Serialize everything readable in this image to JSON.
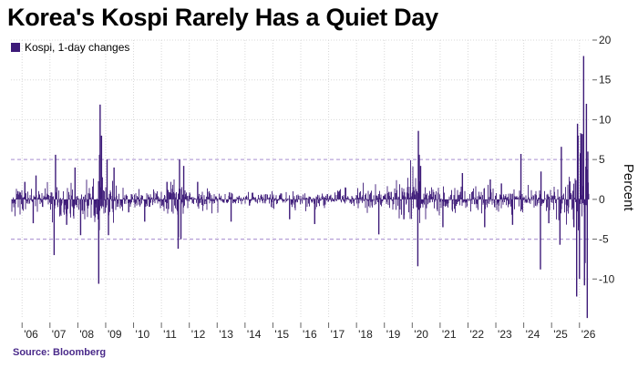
{
  "title": "Korea's Kospi Rarely Has a Quiet Day",
  "source": "Source: Bloomberg",
  "colors": {
    "series": "#3d1a78",
    "reference_line": "#b9a3d9",
    "grid": "#d8d8d8",
    "source_text": "#4a2a8a"
  },
  "chart_data": {
    "type": "bar",
    "ylabel": "Percent",
    "ylim": [
      -15,
      20
    ],
    "yticks": [
      -10,
      -5,
      0,
      5,
      10,
      15,
      20
    ],
    "ytick_labels": [
      "-10",
      "-5",
      "0",
      "5",
      "10",
      "15",
      "20"
    ],
    "reference_lines": [
      5,
      -5
    ],
    "x_range": [
      2005.6,
      2026.4
    ],
    "xticks": [
      2006,
      2007,
      2008,
      2009,
      2010,
      2011,
      2012,
      2013,
      2014,
      2015,
      2016,
      2017,
      2018,
      2019,
      2020,
      2021,
      2022,
      2023,
      2024,
      2025,
      2026
    ],
    "xtick_labels": [
      "'06",
      "'07",
      "'08",
      "'09",
      "'10",
      "'11",
      "'12",
      "'13",
      "'14",
      "'15",
      "'16",
      "'17",
      "'18",
      "'19",
      "'20",
      "'21",
      "'22",
      "'23",
      "'24",
      "'25",
      "'26"
    ],
    "grid": true,
    "legend_position": "top-left",
    "series": [
      {
        "name": "Kospi, 1-day changes",
        "volatility_regimes": [
          [
            2005.6,
            1.6
          ],
          [
            2006.4,
            1.3
          ],
          [
            2007.0,
            1.6
          ],
          [
            2007.6,
            2.2
          ],
          [
            2008.0,
            2.0
          ],
          [
            2008.7,
            4.2
          ],
          [
            2009.0,
            2.8
          ],
          [
            2009.5,
            1.6
          ],
          [
            2010.0,
            1.2
          ],
          [
            2011.0,
            1.2
          ],
          [
            2011.6,
            2.6
          ],
          [
            2012.0,
            1.3
          ],
          [
            2012.5,
            1.0
          ],
          [
            2013.0,
            0.9
          ],
          [
            2014.0,
            0.7
          ],
          [
            2015.0,
            0.9
          ],
          [
            2016.0,
            0.9
          ],
          [
            2017.0,
            0.7
          ],
          [
            2018.0,
            1.2
          ],
          [
            2019.0,
            1.1
          ],
          [
            2020.1,
            3.2
          ],
          [
            2020.5,
            1.8
          ],
          [
            2021.0,
            1.3
          ],
          [
            2022.0,
            1.5
          ],
          [
            2023.0,
            1.3
          ],
          [
            2024.0,
            1.3
          ],
          [
            2024.6,
            1.5
          ],
          [
            2025.0,
            1.5
          ],
          [
            2025.5,
            1.8
          ],
          [
            2025.8,
            3.5
          ],
          [
            2026.0,
            4.0
          ],
          [
            2026.4,
            4.0
          ]
        ],
        "extreme_moves": [
          [
            2006.1,
            2.2
          ],
          [
            2006.4,
            -3.0
          ],
          [
            2006.5,
            3.0
          ],
          [
            2007.15,
            -7.0
          ],
          [
            2007.2,
            5.6
          ],
          [
            2007.6,
            -3.2
          ],
          [
            2007.9,
            4.0
          ],
          [
            2008.1,
            -4.5
          ],
          [
            2008.75,
            -10.6
          ],
          [
            2008.78,
            5.6
          ],
          [
            2008.8,
            11.9
          ],
          [
            2008.85,
            8.0
          ],
          [
            2009.05,
            5.0
          ],
          [
            2009.1,
            -4.5
          ],
          [
            2009.3,
            4.0
          ],
          [
            2010.4,
            -2.8
          ],
          [
            2011.2,
            2.2
          ],
          [
            2011.6,
            -6.2
          ],
          [
            2011.65,
            5.0
          ],
          [
            2011.7,
            -5.0
          ],
          [
            2011.8,
            4.2
          ],
          [
            2012.3,
            2.2
          ],
          [
            2013.5,
            -2.8
          ],
          [
            2015.6,
            -2.5
          ],
          [
            2016.5,
            -3.1
          ],
          [
            2017.6,
            1.5
          ],
          [
            2018.8,
            -4.4
          ],
          [
            2019.7,
            -2.5
          ],
          [
            2020.2,
            -8.4
          ],
          [
            2020.22,
            8.6
          ],
          [
            2020.25,
            5.6
          ],
          [
            2020.3,
            4.2
          ],
          [
            2021.1,
            -3.5
          ],
          [
            2021.8,
            3.3
          ],
          [
            2022.6,
            -3.5
          ],
          [
            2022.8,
            2.5
          ],
          [
            2023.2,
            2.0
          ],
          [
            2023.6,
            -3.2
          ],
          [
            2023.9,
            5.7
          ],
          [
            2024.6,
            -8.8
          ],
          [
            2024.62,
            3.5
          ],
          [
            2024.9,
            -3.0
          ],
          [
            2025.3,
            -5.7
          ],
          [
            2025.35,
            6.6
          ],
          [
            2025.8,
            -3.5
          ],
          [
            2025.9,
            -12.2
          ],
          [
            2025.93,
            9.5
          ],
          [
            2025.95,
            8.0
          ],
          [
            2026.0,
            -10.0
          ],
          [
            2026.03,
            5.8
          ],
          [
            2026.05,
            8.3
          ],
          [
            2026.1,
            8.2
          ],
          [
            2026.15,
            18.0
          ],
          [
            2026.18,
            -10.8
          ],
          [
            2026.2,
            -8.0
          ],
          [
            2026.25,
            12.0
          ],
          [
            2026.28,
            -14.9
          ],
          [
            2026.3,
            6.0
          ]
        ]
      }
    ]
  }
}
